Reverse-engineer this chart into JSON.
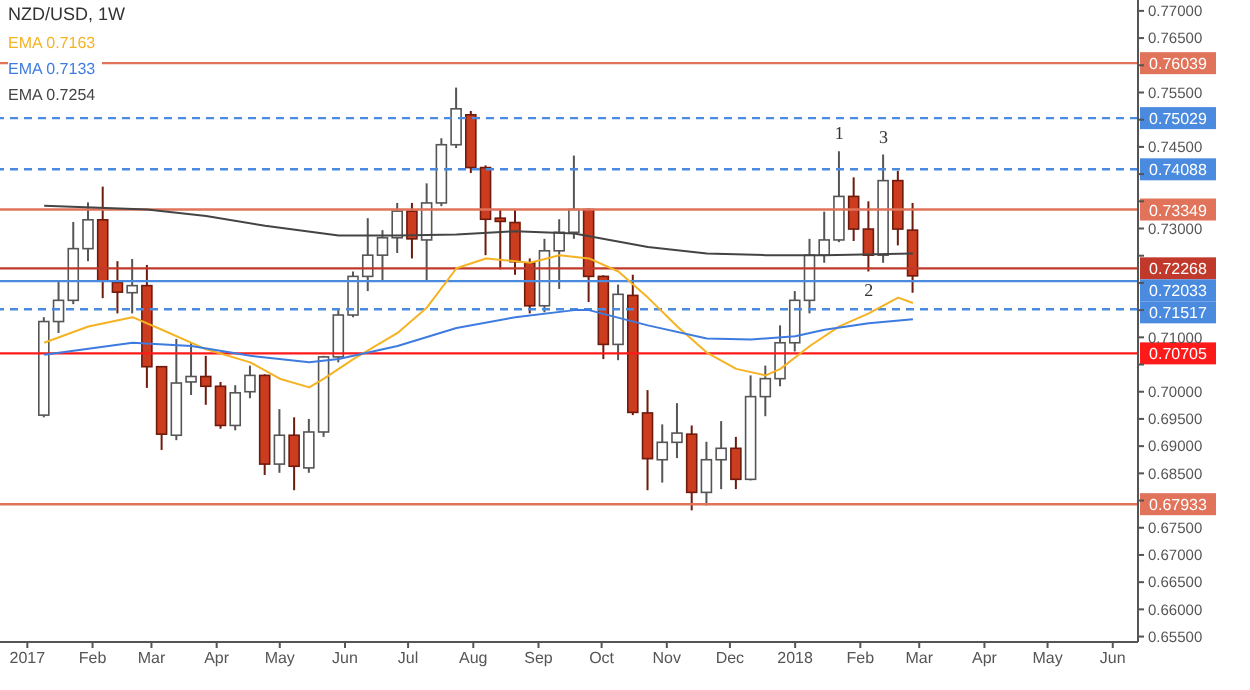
{
  "chart_data": {
    "type": "candlestick",
    "title": "NZD/USD, 1W",
    "x": [
      "2017-01-09",
      "2017-01-16",
      "2017-01-23",
      "2017-01-30",
      "2017-02-06",
      "2017-02-13",
      "2017-02-20",
      "2017-02-27",
      "2017-03-06",
      "2017-03-13",
      "2017-03-20",
      "2017-03-27",
      "2017-04-03",
      "2017-04-10",
      "2017-04-17",
      "2017-04-24",
      "2017-05-01",
      "2017-05-08",
      "2017-05-15",
      "2017-05-22",
      "2017-05-29",
      "2017-06-05",
      "2017-06-12",
      "2017-06-19",
      "2017-06-26",
      "2017-07-03",
      "2017-07-10",
      "2017-07-17",
      "2017-07-24",
      "2017-07-31",
      "2017-08-07",
      "2017-08-14",
      "2017-08-21",
      "2017-08-28",
      "2017-09-04",
      "2017-09-11",
      "2017-09-18",
      "2017-09-25",
      "2017-10-02",
      "2017-10-09",
      "2017-10-16",
      "2017-10-23",
      "2017-10-30",
      "2017-11-06",
      "2017-11-13",
      "2017-11-20",
      "2017-11-27",
      "2017-12-04",
      "2017-12-11",
      "2017-12-18",
      "2017-12-25",
      "2018-01-01",
      "2018-01-08",
      "2018-01-15",
      "2018-01-22",
      "2018-01-29",
      "2018-02-05",
      "2018-02-12",
      "2018-02-19",
      "2018-02-26"
    ],
    "ohlc": [
      [
        0.6957,
        0.7137,
        0.6953,
        0.7129
      ],
      [
        0.7129,
        0.7204,
        0.7108,
        0.7168
      ],
      [
        0.7168,
        0.7312,
        0.7161,
        0.7263
      ],
      [
        0.7263,
        0.7348,
        0.724,
        0.7316
      ],
      [
        0.7316,
        0.7377,
        0.7172,
        0.7204
      ],
      [
        0.7201,
        0.724,
        0.7144,
        0.7183
      ],
      [
        0.7182,
        0.7244,
        0.7144,
        0.7195
      ],
      [
        0.7195,
        0.7233,
        0.7007,
        0.7046
      ],
      [
        0.7046,
        0.7047,
        0.6893,
        0.6922
      ],
      [
        0.692,
        0.7097,
        0.6911,
        0.7016
      ],
      [
        0.7018,
        0.709,
        0.6994,
        0.7028
      ],
      [
        0.7028,
        0.7066,
        0.6976,
        0.701
      ],
      [
        0.701,
        0.7018,
        0.6932,
        0.6938
      ],
      [
        0.6938,
        0.7012,
        0.6929,
        0.6998
      ],
      [
        0.7,
        0.7048,
        0.6988,
        0.703
      ],
      [
        0.703,
        0.7032,
        0.6847,
        0.6867
      ],
      [
        0.6867,
        0.6968,
        0.6851,
        0.692
      ],
      [
        0.692,
        0.6953,
        0.6819,
        0.6863
      ],
      [
        0.686,
        0.695,
        0.6851,
        0.6926
      ],
      [
        0.6926,
        0.7066,
        0.6917,
        0.7064
      ],
      [
        0.7064,
        0.715,
        0.7054,
        0.7141
      ],
      [
        0.7141,
        0.7221,
        0.7137,
        0.7212
      ],
      [
        0.7212,
        0.7319,
        0.7185,
        0.7251
      ],
      [
        0.7251,
        0.7297,
        0.7203,
        0.7283
      ],
      [
        0.7283,
        0.7347,
        0.7255,
        0.7332
      ],
      [
        0.7332,
        0.7347,
        0.7245,
        0.7281
      ],
      [
        0.7279,
        0.7383,
        0.7203,
        0.7347
      ],
      [
        0.7347,
        0.7466,
        0.7341,
        0.7454
      ],
      [
        0.7454,
        0.7559,
        0.7448,
        0.752
      ],
      [
        0.7509,
        0.7516,
        0.7402,
        0.7412
      ],
      [
        0.7412,
        0.7416,
        0.7251,
        0.7317
      ],
      [
        0.7319,
        0.7335,
        0.7225,
        0.7313
      ],
      [
        0.7311,
        0.7335,
        0.7215,
        0.7239
      ],
      [
        0.7237,
        0.7245,
        0.7144,
        0.7158
      ],
      [
        0.7158,
        0.7281,
        0.7146,
        0.7259
      ],
      [
        0.7259,
        0.7317,
        0.7189,
        0.7293
      ],
      [
        0.7293,
        0.7434,
        0.7281,
        0.7335
      ],
      [
        0.7335,
        0.7337,
        0.7165,
        0.7212
      ],
      [
        0.7212,
        0.7214,
        0.706,
        0.7087
      ],
      [
        0.7087,
        0.7197,
        0.7058,
        0.7179
      ],
      [
        0.7177,
        0.7215,
        0.6957,
        0.6962
      ],
      [
        0.6961,
        0.7003,
        0.6819,
        0.6877
      ],
      [
        0.6875,
        0.694,
        0.6833,
        0.6907
      ],
      [
        0.6907,
        0.6979,
        0.6878,
        0.6924
      ],
      [
        0.6922,
        0.6938,
        0.6782,
        0.6815
      ],
      [
        0.6815,
        0.6908,
        0.6791,
        0.6875
      ],
      [
        0.6875,
        0.6946,
        0.6821,
        0.6896
      ],
      [
        0.6896,
        0.6917,
        0.6821,
        0.6839
      ],
      [
        0.6839,
        0.703,
        0.6837,
        0.6991
      ],
      [
        0.6991,
        0.7048,
        0.6955,
        0.7024
      ],
      [
        0.7024,
        0.7122,
        0.701,
        0.709
      ],
      [
        0.709,
        0.7185,
        0.7074,
        0.7168
      ],
      [
        0.7168,
        0.7281,
        0.7144,
        0.7251
      ],
      [
        0.7251,
        0.7331,
        0.7237,
        0.7279
      ],
      [
        0.7279,
        0.7442,
        0.7275,
        0.7359
      ],
      [
        0.7359,
        0.7394,
        0.7277,
        0.7299
      ],
      [
        0.7299,
        0.735,
        0.7221,
        0.7251
      ],
      [
        0.7251,
        0.7436,
        0.7237,
        0.7388
      ],
      [
        0.7388,
        0.7406,
        0.7269,
        0.7299
      ],
      [
        0.7297,
        0.7347,
        0.7182,
        0.7213
      ]
    ],
    "series": [
      {
        "name": "EMA 0.7163",
        "type": "line",
        "color": "#f5b324",
        "x": [
          "2017-01-09",
          "2017-01-30",
          "2017-02-20",
          "2017-03-06",
          "2017-03-27",
          "2017-04-17",
          "2017-05-01",
          "2017-05-15",
          "2017-05-22",
          "2017-06-05",
          "2017-06-26",
          "2017-07-10",
          "2017-07-24",
          "2017-08-07",
          "2017-08-28",
          "2017-09-11",
          "2017-09-25",
          "2017-10-09",
          "2017-10-23",
          "2017-11-06",
          "2017-11-20",
          "2017-12-04",
          "2017-12-18",
          "2017-12-25",
          "2018-01-08",
          "2018-01-22",
          "2018-02-05",
          "2018-02-19",
          "2018-02-26"
        ],
        "values": [
          0.709,
          0.712,
          0.7137,
          0.7114,
          0.7078,
          0.7054,
          0.7024,
          0.7008,
          0.7024,
          0.706,
          0.7108,
          0.7155,
          0.7227,
          0.7245,
          0.7237,
          0.7251,
          0.7245,
          0.7221,
          0.7173,
          0.712,
          0.7072,
          0.7042,
          0.703,
          0.7042,
          0.7084,
          0.712,
          0.7144,
          0.7173,
          0.7163
        ]
      },
      {
        "name": "EMA 0.7133",
        "type": "line",
        "color": "#3d7be0",
        "x": [
          "2017-01-09",
          "2017-02-20",
          "2017-03-20",
          "2017-04-17",
          "2017-05-15",
          "2017-05-29",
          "2017-06-26",
          "2017-07-24",
          "2017-08-21",
          "2017-09-18",
          "2017-09-25",
          "2017-10-23",
          "2017-11-20",
          "2017-12-11",
          "2018-01-01",
          "2018-01-15",
          "2018-02-05",
          "2018-02-26"
        ],
        "values": [
          0.7068,
          0.709,
          0.7084,
          0.7066,
          0.7054,
          0.706,
          0.7084,
          0.7117,
          0.7137,
          0.715,
          0.715,
          0.7122,
          0.7098,
          0.7096,
          0.7102,
          0.7114,
          0.7126,
          0.7133
        ]
      },
      {
        "name": "EMA 0.7254",
        "type": "line",
        "color": "#444444",
        "x": [
          "2017-01-09",
          "2017-02-27",
          "2017-03-27",
          "2017-04-24",
          "2017-05-29",
          "2017-06-26",
          "2017-07-24",
          "2017-08-21",
          "2017-09-18",
          "2017-10-23",
          "2017-11-20",
          "2017-12-18",
          "2018-01-15",
          "2018-02-26"
        ],
        "values": [
          0.7342,
          0.7335,
          0.7323,
          0.7305,
          0.7287,
          0.7287,
          0.7289,
          0.7295,
          0.7291,
          0.7266,
          0.7254,
          0.7251,
          0.7251,
          0.7254
        ]
      }
    ],
    "xlim": [
      "2016-12-19",
      "2018-06-13"
    ],
    "xticks": [
      {
        "value": "2017-01-01",
        "label": "2017"
      },
      {
        "value": "2017-02-01",
        "label": "Feb"
      },
      {
        "value": "2017-03-01",
        "label": "Mar"
      },
      {
        "value": "2017-04-01",
        "label": "Apr"
      },
      {
        "value": "2017-05-01",
        "label": "May"
      },
      {
        "value": "2017-06-01",
        "label": "Jun"
      },
      {
        "value": "2017-07-01",
        "label": "Jul"
      },
      {
        "value": "2017-08-01",
        "label": "Aug"
      },
      {
        "value": "2017-09-01",
        "label": "Sep"
      },
      {
        "value": "2017-10-01",
        "label": "Oct"
      },
      {
        "value": "2017-11-01",
        "label": "Nov"
      },
      {
        "value": "2017-12-01",
        "label": "Dec"
      },
      {
        "value": "2018-01-01",
        "label": "2018"
      },
      {
        "value": "2018-02-01",
        "label": "Feb"
      },
      {
        "value": "2018-03-01",
        "label": "Mar"
      },
      {
        "value": "2018-04-01",
        "label": "Apr"
      },
      {
        "value": "2018-05-01",
        "label": "May"
      },
      {
        "value": "2018-06-01",
        "label": "Jun"
      }
    ],
    "ylim": [
      0.654,
      0.772
    ],
    "yticks": [
      {
        "value": 0.655,
        "label": "0.65500"
      },
      {
        "value": 0.66,
        "label": "0.66000"
      },
      {
        "value": 0.665,
        "label": "0.66500"
      },
      {
        "value": 0.67,
        "label": "0.67000"
      },
      {
        "value": 0.675,
        "label": "0.67500"
      },
      {
        "value": 0.68,
        "label": null
      },
      {
        "value": 0.685,
        "label": "0.68500"
      },
      {
        "value": 0.69,
        "label": "0.69000"
      },
      {
        "value": 0.695,
        "label": "0.69500"
      },
      {
        "value": 0.7,
        "label": "0.70000"
      },
      {
        "value": 0.705,
        "label": null
      },
      {
        "value": 0.71,
        "label": "0.71000"
      },
      {
        "value": 0.715,
        "label": null
      },
      {
        "value": 0.72,
        "label": null
      },
      {
        "value": 0.725,
        "label": null
      },
      {
        "value": 0.73,
        "label": "0.73000"
      },
      {
        "value": 0.735,
        "label": null
      },
      {
        "value": 0.74,
        "label": null
      },
      {
        "value": 0.745,
        "label": "0.74500"
      },
      {
        "value": 0.75,
        "label": null
      },
      {
        "value": 0.755,
        "label": "0.75500"
      },
      {
        "value": 0.76,
        "label": null
      },
      {
        "value": 0.765,
        "label": "0.76500"
      },
      {
        "value": 0.77,
        "label": "0.77000"
      }
    ],
    "ref_lines": [
      {
        "axis": "y",
        "value": 0.76039,
        "label": "0.76039",
        "color": "#e0735a",
        "line_style": "solid"
      },
      {
        "axis": "y",
        "value": 0.75029,
        "label": "0.75029",
        "color": "#4a8be0",
        "line_style": "dashed"
      },
      {
        "axis": "y",
        "value": 0.74088,
        "label": "0.74088",
        "color": "#4a8be0",
        "line_style": "dashed"
      },
      {
        "axis": "y",
        "value": 0.73349,
        "label": "0.73349",
        "color": "#e0735a",
        "line_style": "solid"
      },
      {
        "axis": "y",
        "value": 0.72268,
        "label": "0.72268",
        "color": "#c0392b",
        "line_style": "solid"
      },
      {
        "axis": "y",
        "value": 0.72033,
        "label": "0.72033",
        "color": "#4a8be0",
        "line_style": "solid"
      },
      {
        "axis": "y",
        "value": 0.71517,
        "label": "0.71517",
        "color": "#4a8be0",
        "line_style": "dashed"
      },
      {
        "axis": "y",
        "value": 0.70705,
        "label": "0.70705",
        "color": "#ff1a1a",
        "line_style": "solid"
      },
      {
        "axis": "y",
        "value": 0.67933,
        "label": "0.67933",
        "color": "#e0735a",
        "line_style": "solid"
      }
    ],
    "annotations": [
      {
        "text": "1",
        "x": "2018-01-22",
        "y": 0.7442
      },
      {
        "text": "2",
        "x": "2018-02-05",
        "y": 0.7221
      },
      {
        "text": "3",
        "x": "2018-02-12",
        "y": 0.7436
      }
    ],
    "legend": "top left"
  }
}
